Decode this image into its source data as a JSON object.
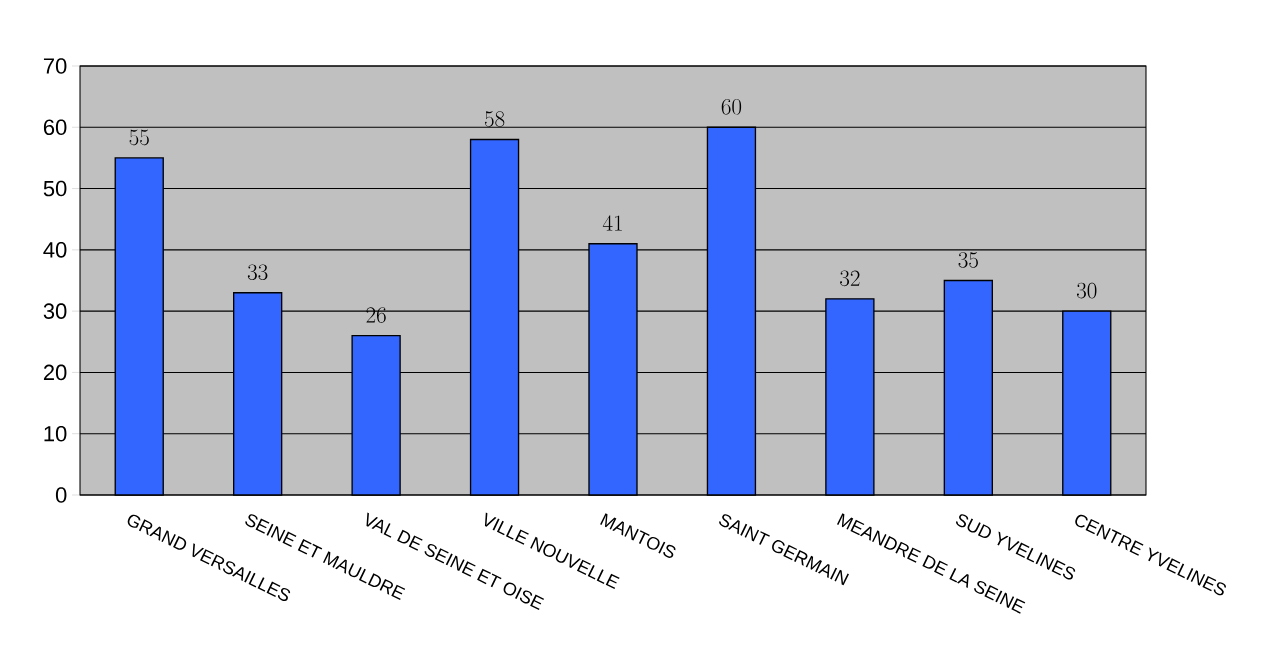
{
  "chart_data": {
    "type": "bar",
    "categories": [
      "GRAND VERSAILLES",
      "SEINE ET MAULDRE",
      "VAL DE SEINE ET OISE",
      "VILLE NOUVELLE",
      "MANTOIS",
      "SAINT GERMAIN",
      "MEANDRE DE LA SEINE",
      "SUD YVELINES",
      "CENTRE YVELINES"
    ],
    "values": [
      55,
      33,
      26,
      58,
      41,
      60,
      32,
      35,
      30
    ],
    "color": "#3366ff",
    "ylim": [
      0,
      70
    ],
    "yticks": [
      0,
      10,
      20,
      30,
      40,
      50,
      60,
      70
    ],
    "grid": "y",
    "data_labels": true
  }
}
